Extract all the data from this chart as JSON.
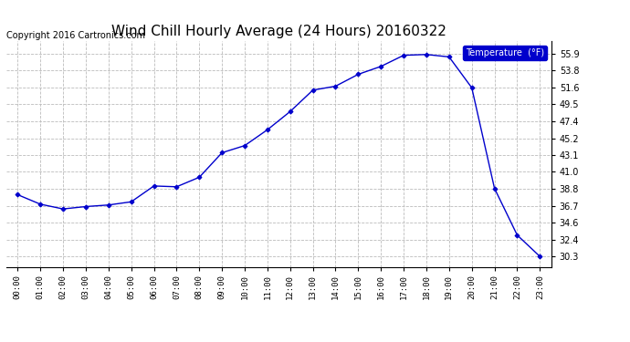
{
  "title": "Wind Chill Hourly Average (24 Hours) 20160322",
  "copyright": "Copyright 2016 Cartronics.com",
  "legend_label": "Temperature  (°F)",
  "x_labels": [
    "00:00",
    "01:00",
    "02:00",
    "03:00",
    "04:00",
    "05:00",
    "06:00",
    "07:00",
    "08:00",
    "09:00",
    "10:00",
    "11:00",
    "12:00",
    "13:00",
    "14:00",
    "15:00",
    "16:00",
    "17:00",
    "18:00",
    "19:00",
    "20:00",
    "21:00",
    "22:00",
    "23:00"
  ],
  "y_values": [
    38.1,
    36.9,
    36.3,
    36.6,
    36.8,
    37.2,
    39.2,
    39.1,
    40.3,
    43.4,
    44.3,
    46.3,
    48.6,
    51.3,
    51.8,
    53.3,
    54.3,
    55.7,
    55.8,
    55.5,
    51.6,
    38.9,
    33.0,
    30.3
  ],
  "ylim_min": 29.0,
  "ylim_max": 57.5,
  "yticks": [
    30.3,
    32.4,
    34.6,
    36.7,
    38.8,
    41.0,
    43.1,
    45.2,
    47.4,
    49.5,
    51.6,
    53.8,
    55.9
  ],
  "line_color": "#0000cc",
  "marker": "D",
  "marker_size": 2.5,
  "background_color": "#ffffff",
  "plot_bg_color": "#ffffff",
  "grid_color": "#bbbbbb",
  "title_fontsize": 11,
  "copyright_fontsize": 7,
  "legend_bg_color": "#0000cc",
  "legend_text_color": "#ffffff"
}
